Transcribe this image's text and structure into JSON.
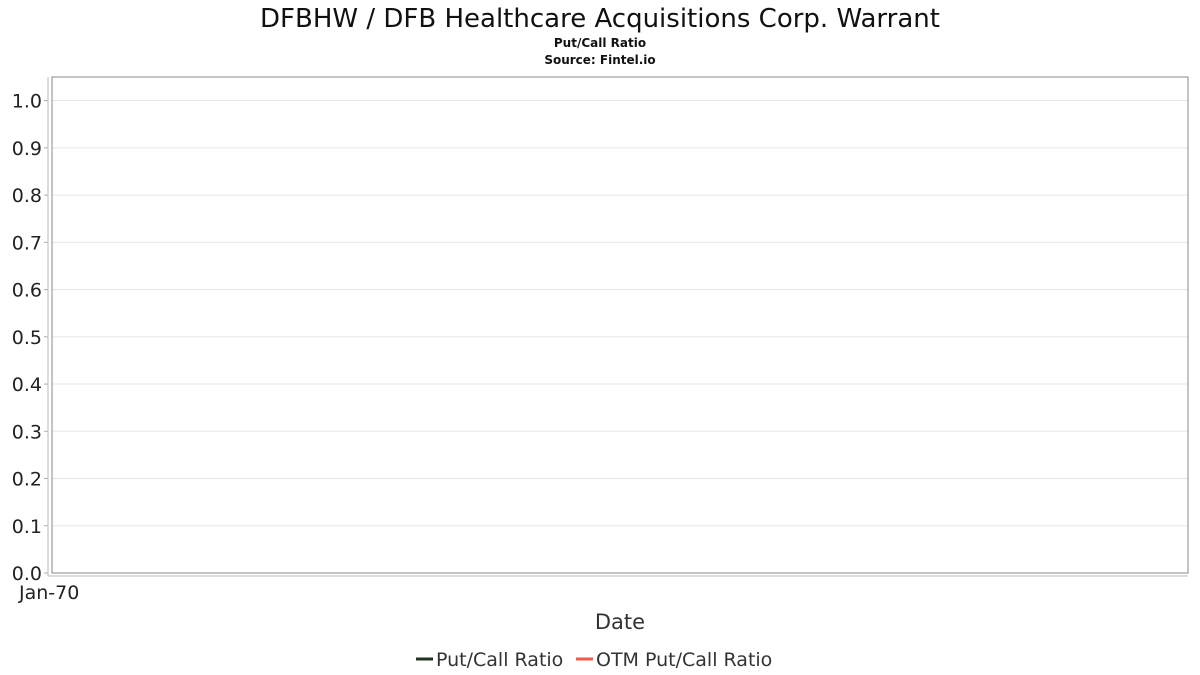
{
  "chart_data": {
    "type": "line",
    "title": "DFBHW / DFB Healthcare Acquisitions Corp. Warrant",
    "subtitle": "Put/Call Ratio",
    "source": "Source: Fintel.io",
    "xlabel": "Date",
    "ylabel": "",
    "x_tick_labels": [
      "Jan-70"
    ],
    "ylim": [
      0,
      1.05
    ],
    "y_ticks": [
      "0.0",
      "0.1",
      "0.2",
      "0.3",
      "0.4",
      "0.5",
      "0.6",
      "0.7",
      "0.8",
      "0.9",
      "1.0"
    ],
    "grid": true,
    "legend_position": "bottom",
    "series": [
      {
        "name": "Put/Call Ratio",
        "color": "#1f3324",
        "x": [],
        "values": []
      },
      {
        "name": "OTM Put/Call Ratio",
        "color": "#f05a4b",
        "x": [],
        "values": []
      }
    ]
  }
}
